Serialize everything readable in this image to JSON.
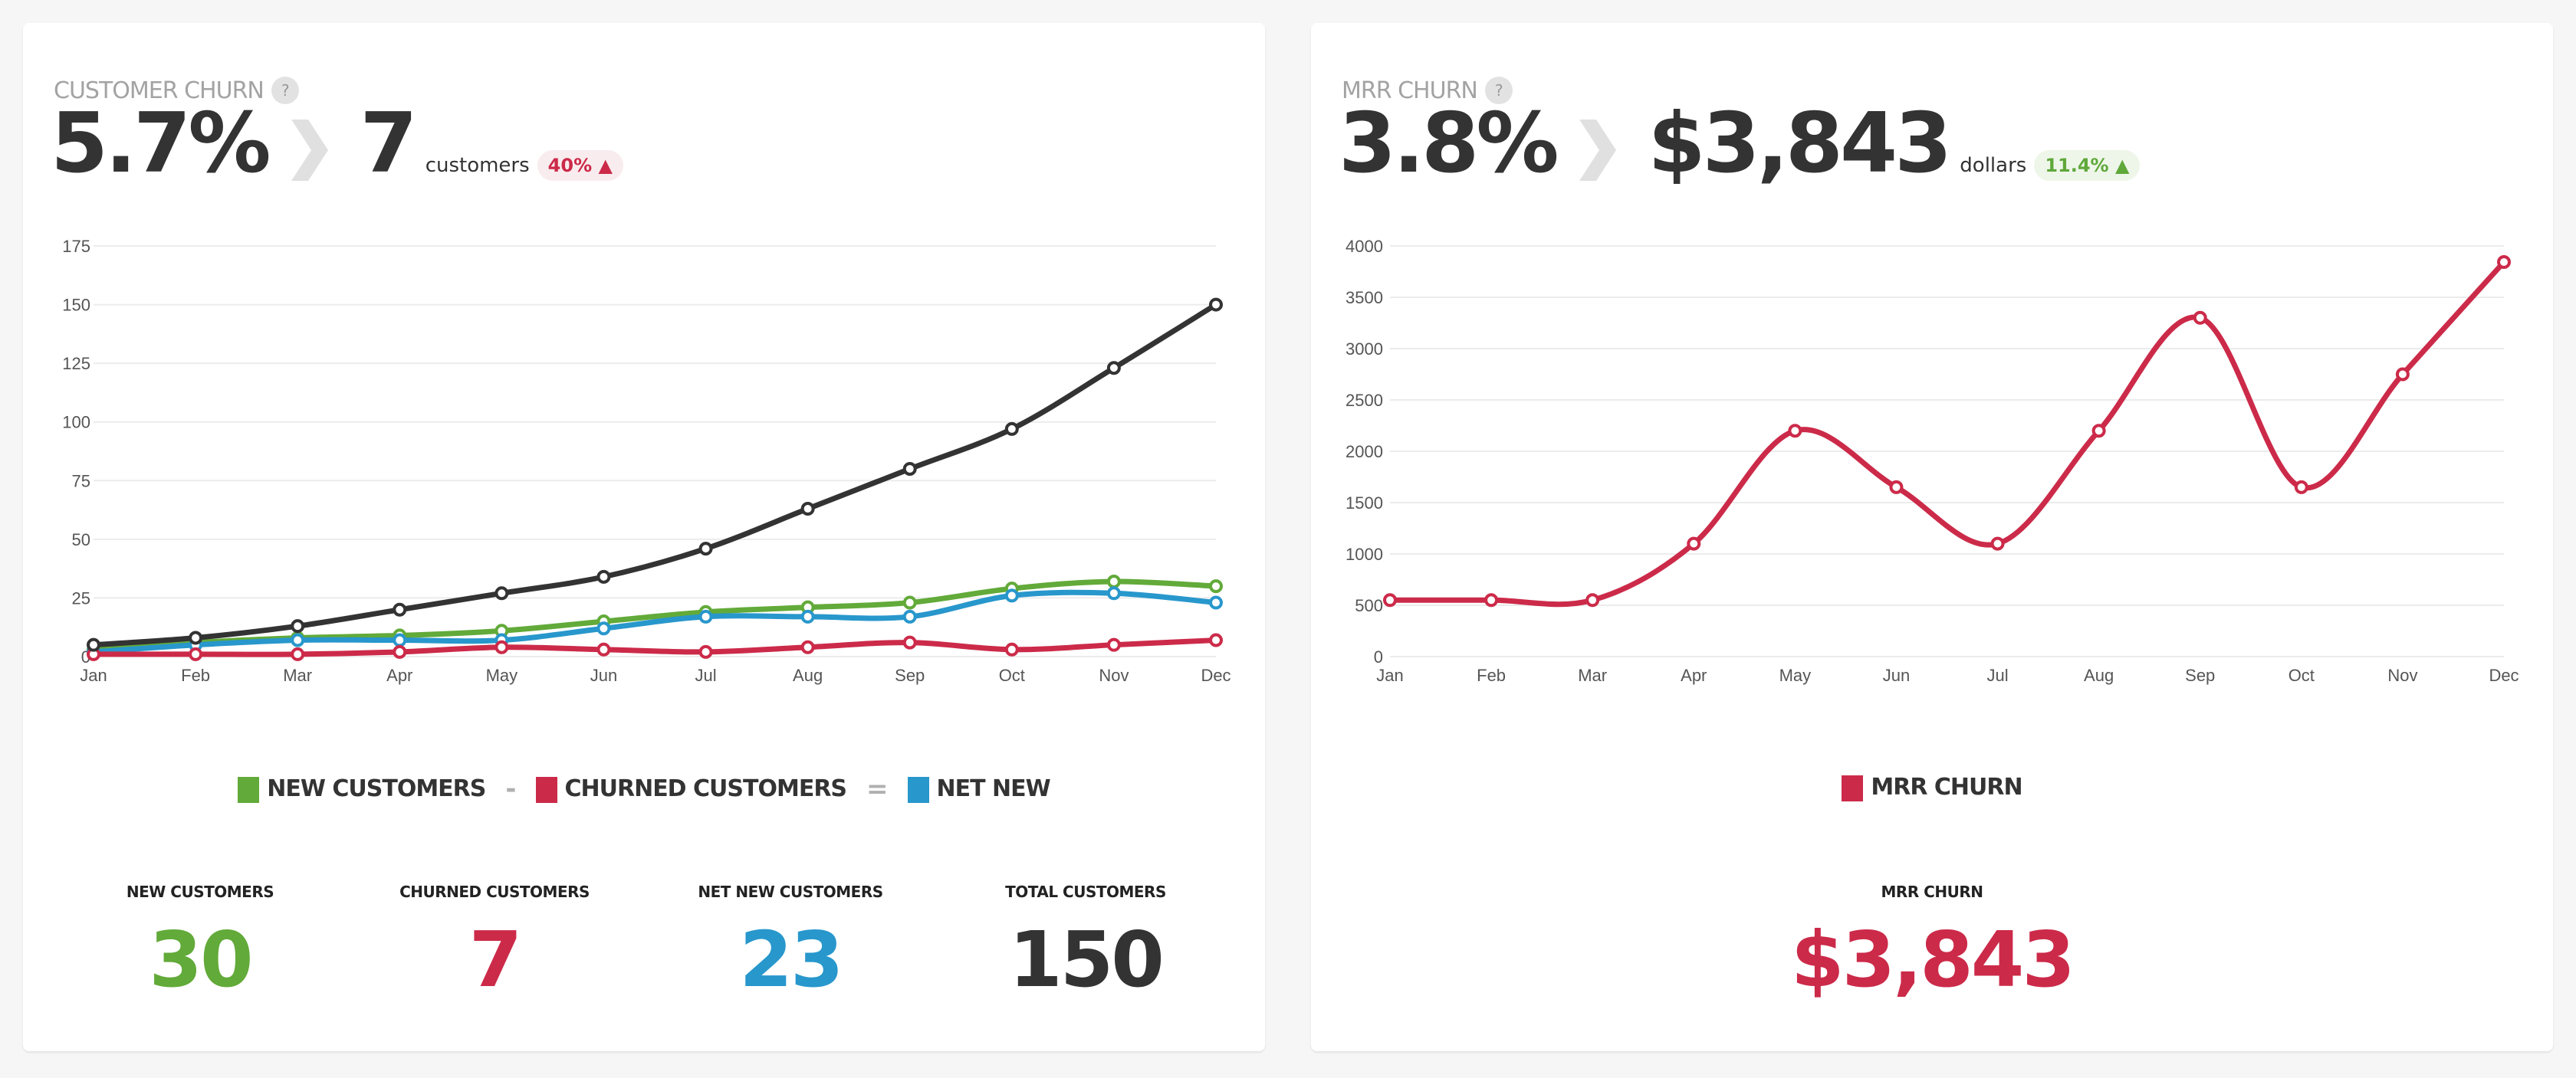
{
  "colors": {
    "new": "#62aa39",
    "churned": "#cc2a49",
    "net": "#2897cc",
    "total": "#333333",
    "mrr": "#cc2a49"
  },
  "customer_churn": {
    "title": "CUSTOMER CHURN",
    "help": "?",
    "rate": "5.7%",
    "count": "7",
    "unit": "customers",
    "change": "40%",
    "change_icon": "chevron-up-icon",
    "legend": {
      "new": "NEW CUSTOMERS",
      "minus": "-",
      "churned": "CHURNED CUSTOMERS",
      "equals": "=",
      "net": "NET NEW"
    },
    "stats": [
      {
        "label": "NEW CUSTOMERS",
        "value": "30",
        "color": "#62aa39"
      },
      {
        "label": "CHURNED CUSTOMERS",
        "value": "7",
        "color": "#cc2a49"
      },
      {
        "label": "NET NEW CUSTOMERS",
        "value": "23",
        "color": "#2897cc"
      },
      {
        "label": "TOTAL CUSTOMERS",
        "value": "150",
        "color": "#333333"
      }
    ]
  },
  "mrr_churn": {
    "title": "MRR CHURN",
    "help": "?",
    "rate": "3.8%",
    "amount": "$3,843",
    "unit": "dollars",
    "change": "11.4%",
    "change_icon": "chevron-up-icon",
    "legend": {
      "mrr": "MRR CHURN"
    },
    "stats": [
      {
        "label": "MRR CHURN",
        "value": "$3,843",
        "color": "#cc2a49"
      }
    ]
  },
  "chart_data": [
    {
      "type": "line",
      "categories": [
        "Jan",
        "Feb",
        "Mar",
        "Apr",
        "May",
        "Jun",
        "Jul",
        "Aug",
        "Sep",
        "Oct",
        "Nov",
        "Dec"
      ],
      "ylim": [
        0,
        175
      ],
      "yticks": [
        0,
        25,
        50,
        75,
        100,
        125,
        150,
        175
      ],
      "grid": true,
      "legend": "bottom",
      "series": [
        {
          "name": "NEW CUSTOMERS",
          "color": "#62aa39",
          "values": [
            3,
            6,
            8,
            9,
            11,
            15,
            19,
            21,
            23,
            29,
            32,
            30
          ]
        },
        {
          "name": "CHURNED CUSTOMERS",
          "color": "#cc2a49",
          "values": [
            1,
            1,
            1,
            2,
            4,
            3,
            2,
            4,
            6,
            3,
            5,
            7
          ]
        },
        {
          "name": "NET NEW",
          "color": "#2897cc",
          "values": [
            2,
            5,
            7,
            7,
            7,
            12,
            17,
            17,
            17,
            26,
            27,
            23
          ]
        },
        {
          "color": "#333333",
          "values": [
            5,
            8,
            13,
            20,
            27,
            34,
            46,
            63,
            80,
            97,
            123,
            150
          ]
        }
      ]
    },
    {
      "type": "line",
      "categories": [
        "Jan",
        "Feb",
        "Mar",
        "Apr",
        "May",
        "Jun",
        "Jul",
        "Aug",
        "Sep",
        "Oct",
        "Nov",
        "Dec"
      ],
      "ylim": [
        0,
        4000
      ],
      "yticks": [
        0,
        500,
        1000,
        1500,
        2000,
        2500,
        3000,
        3500,
        4000
      ],
      "grid": true,
      "legend": "bottom",
      "series": [
        {
          "name": "MRR CHURN",
          "color": "#cc2a49",
          "values": [
            550,
            550,
            550,
            1100,
            2200,
            1650,
            1100,
            2200,
            3300,
            1650,
            2750,
            3843
          ]
        }
      ]
    }
  ]
}
